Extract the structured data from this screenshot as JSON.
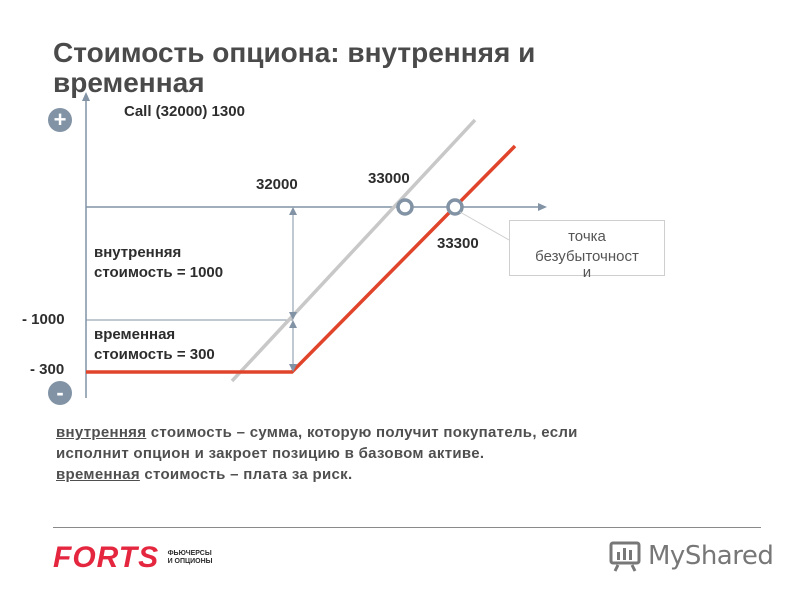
{
  "title": "Стоимость опциона: внутренняя и временная",
  "diagram": {
    "option_label": "Call (32000) 1300",
    "strike_label": "32000",
    "level_33000_label": "33000",
    "breakeven_value_label": "33300",
    "intrinsic_label_line1": "внутренняя",
    "intrinsic_label_line2": "стоимость = 1000",
    "time_label_line1": "временная",
    "time_label_line2": "стоимость = 300",
    "minus_1000_label": "- 1000",
    "minus_300_label": "- 300",
    "plus_sign": "+",
    "minus_sign": "-",
    "callout_line1": "точка",
    "callout_line2": "безубыточност",
    "callout_line3": "и",
    "colors": {
      "payoff_line": "#e0452c",
      "reference_line": "#c8c8c8",
      "axis": "#8193a5"
    }
  },
  "definitions": {
    "line1_term": "внутренняя",
    "line1_rest": " стоимость – сумма, которую получит покупатель, если",
    "line2": "исполнит опцион и закроет позицию в базовом активе.",
    "line3_term": "временная",
    "line3_rest": " стоимость – плата за риск."
  },
  "footer": {
    "forts_logo": "FORTS",
    "forts_sub_line1": "ФЬЮЧЕРСЫ",
    "forts_sub_line2": "И ОПЦИОНЫ",
    "myshared": "MyShared"
  }
}
